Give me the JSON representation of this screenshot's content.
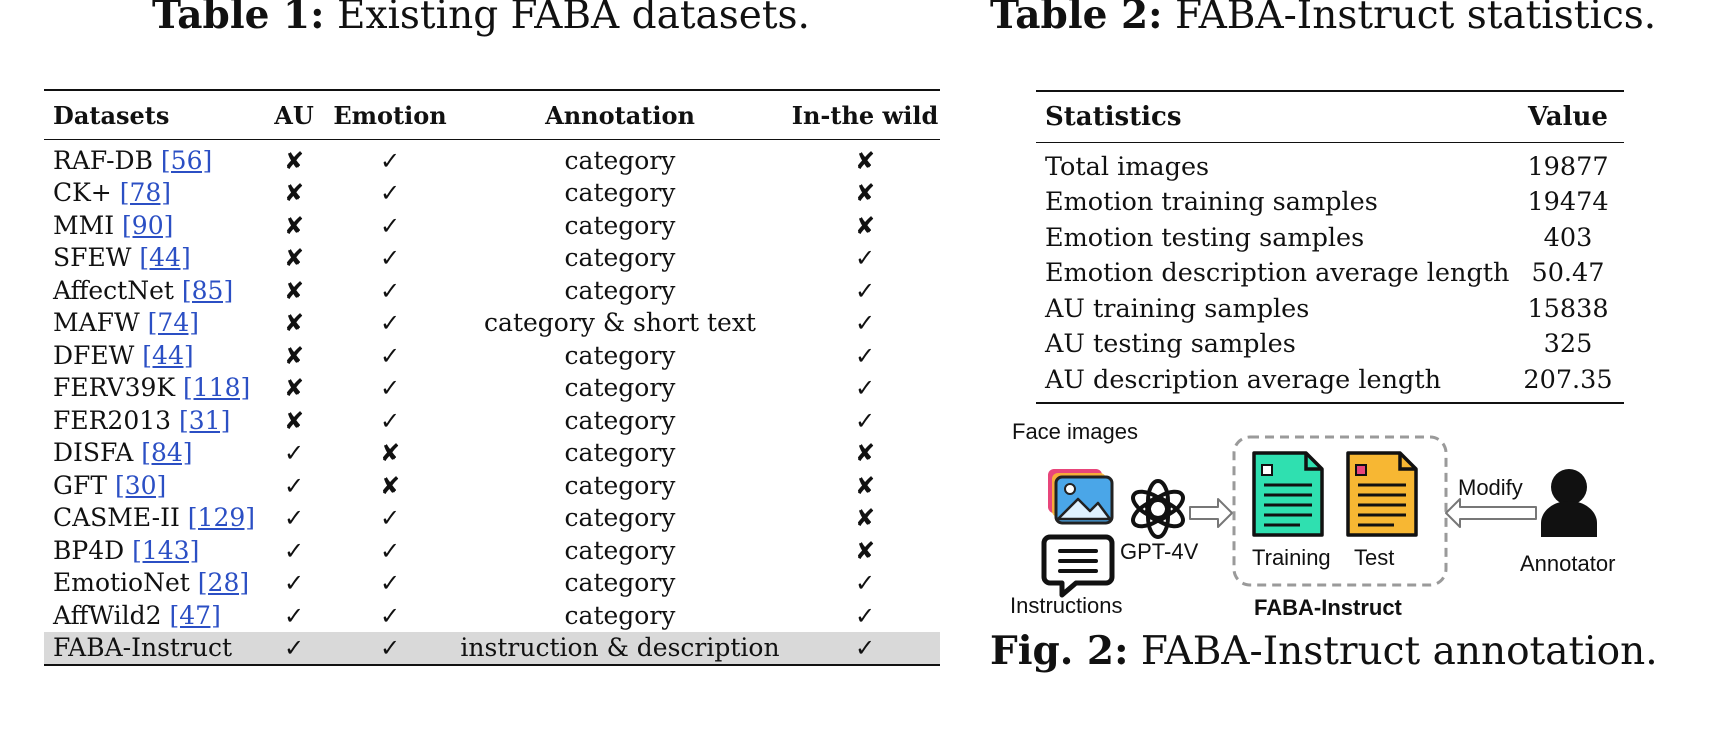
{
  "table1": {
    "caption_bold": "Table 1:",
    "caption_text": " Existing FABA datasets.",
    "headers": [
      "Datasets",
      "AU",
      "Emotion",
      "Annotation",
      "In-the wild"
    ],
    "rows": [
      {
        "name": "RAF-DB",
        "ref": "[56]",
        "au": "✘",
        "emotion": "✓",
        "annotation": "category",
        "wild": "✘"
      },
      {
        "name": "CK+",
        "ref": "[78]",
        "au": "✘",
        "emotion": "✓",
        "annotation": "category",
        "wild": "✘"
      },
      {
        "name": "MMI",
        "ref": "[90]",
        "au": "✘",
        "emotion": "✓",
        "annotation": "category",
        "wild": "✘"
      },
      {
        "name": "SFEW",
        "ref": "[44]",
        "au": "✘",
        "emotion": "✓",
        "annotation": "category",
        "wild": "✓"
      },
      {
        "name": "AffectNet",
        "ref": "[85]",
        "au": "✘",
        "emotion": "✓",
        "annotation": "category",
        "wild": "✓"
      },
      {
        "name": "MAFW",
        "ref": "[74]",
        "au": "✘",
        "emotion": "✓",
        "annotation": "category & short text",
        "wild": "✓"
      },
      {
        "name": "DFEW",
        "ref": "[44]",
        "au": "✘",
        "emotion": "✓",
        "annotation": "category",
        "wild": "✓"
      },
      {
        "name": "FERV39K",
        "ref": "[118]",
        "au": "✘",
        "emotion": "✓",
        "annotation": "category",
        "wild": "✓"
      },
      {
        "name": "FER2013",
        "ref": "[31]",
        "au": "✘",
        "emotion": "✓",
        "annotation": "category",
        "wild": "✓"
      },
      {
        "name": "DISFA",
        "ref": "[84]",
        "au": "✓",
        "emotion": "✘",
        "annotation": "category",
        "wild": "✘"
      },
      {
        "name": "GFT",
        "ref": "[30]",
        "au": "✓",
        "emotion": "✘",
        "annotation": "category",
        "wild": "✘"
      },
      {
        "name": "CASME-II",
        "ref": "[129]",
        "au": "✓",
        "emotion": "✓",
        "annotation": "category",
        "wild": "✘"
      },
      {
        "name": "BP4D",
        "ref": "[143]",
        "au": "✓",
        "emotion": "✓",
        "annotation": "category",
        "wild": "✘"
      },
      {
        "name": "EmotioNet",
        "ref": "[28]",
        "au": "✓",
        "emotion": "✓",
        "annotation": "category",
        "wild": "✓"
      },
      {
        "name": "AffWild2",
        "ref": "[47]",
        "au": "✓",
        "emotion": "✓",
        "annotation": "category",
        "wild": "✓"
      },
      {
        "name": "FABA-Instruct",
        "ref": "",
        "au": "✓",
        "emotion": "✓",
        "annotation": "instruction & description",
        "wild": "✓",
        "highlight": true
      }
    ]
  },
  "table2": {
    "caption_bold": "Table 2:",
    "caption_text": " FABA-Instruct statistics.",
    "headers": [
      "Statistics",
      "Value"
    ],
    "rows": [
      {
        "stat": "Total images",
        "value": "19877"
      },
      {
        "stat": "Emotion training samples",
        "value": "19474"
      },
      {
        "stat": "Emotion testing samples",
        "value": "403"
      },
      {
        "stat": "Emotion description average length",
        "value": "50.47"
      },
      {
        "stat": "AU training samples",
        "value": "15838"
      },
      {
        "stat": "AU testing samples",
        "value": "325"
      },
      {
        "stat": "AU description average length",
        "value": "207.35"
      }
    ]
  },
  "figure": {
    "caption_bold": "Fig. 2:",
    "caption_text": " FABA-Instruct annotation.",
    "labels": {
      "face_images": "Face images",
      "instructions": "Instructions",
      "gpt": "GPT-4V",
      "training": "Training",
      "test": "Test",
      "modify": "Modify",
      "annotator": "Annotator",
      "dataset": "FABA-Instruct"
    },
    "colors": {
      "training_doc": "#2fe0b0",
      "test_doc": "#f7b733",
      "photo_back": "#e8457a",
      "photo_front": "#4aa6e8",
      "dashed_box": "#9a9a9a"
    }
  }
}
